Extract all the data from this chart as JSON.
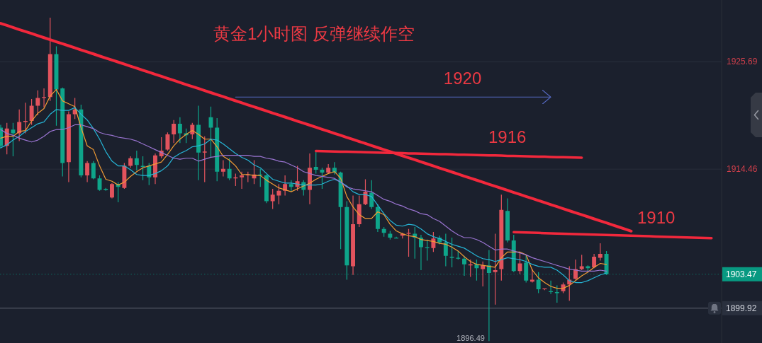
{
  "chart_data": {
    "type": "candlestick",
    "title": "黄金1小时图 反弹继续作空",
    "categories": [
      null,
      null,
      null,
      null,
      null,
      null,
      null,
      null,
      null,
      null,
      null,
      null,
      null,
      null,
      null,
      null,
      null,
      null,
      null,
      null,
      null,
      null,
      null,
      null,
      null,
      null,
      null,
      null,
      null,
      null,
      null,
      null,
      null,
      null,
      null,
      null,
      null,
      null,
      null,
      null,
      null,
      null,
      null,
      null,
      null,
      null,
      null,
      null,
      null,
      null,
      null,
      null,
      null,
      null,
      null,
      null,
      null,
      null,
      null,
      null,
      null,
      null,
      null,
      null,
      null,
      null,
      null,
      null,
      null,
      null,
      null,
      null,
      null,
      null,
      null,
      null,
      null,
      null,
      null,
      null,
      null,
      null,
      null,
      null,
      null,
      null,
      null,
      null,
      null,
      null,
      null,
      null,
      null,
      null,
      null,
      null,
      null,
      null,
      null,
      null,
      null,
      null,
      null,
      null,
      null,
      null,
      null,
      null,
      null,
      null,
      null,
      null,
      null,
      null,
      null,
      null,
      null
    ],
    "ohlc": [
      [
        1918.8,
        1919.1,
        1916.6,
        1916.9
      ],
      [
        1916.9,
        1919.3,
        1916.0,
        1918.7
      ],
      [
        1918.6,
        1919.3,
        1915.8,
        1918.2
      ],
      [
        1918.2,
        1920.7,
        1917.4,
        1919.4
      ],
      [
        1919.4,
        1921.4,
        1918.2,
        1919.5
      ],
      [
        1919.5,
        1921.8,
        1919.1,
        1921.1
      ],
      [
        1921.1,
        1922.7,
        1920.1,
        1921.9
      ],
      [
        1921.9,
        1922.9,
        1920.9,
        1922.0
      ],
      [
        1922.0,
        1930.3,
        1921.6,
        1926.5
      ],
      [
        1926.5,
        1927.3,
        1919.0,
        1922.8
      ],
      [
        1922.9,
        1923.0,
        1913.7,
        1915.1
      ],
      [
        1915.2,
        1920.5,
        1913.1,
        1920.2
      ],
      [
        1920.2,
        1921.9,
        1919.7,
        1920.7
      ],
      [
        1920.7,
        1921.2,
        1913.6,
        1913.8
      ],
      [
        1913.8,
        1915.3,
        1913.1,
        1915.1
      ],
      [
        1915.1,
        1915.3,
        1913.4,
        1913.5
      ],
      [
        1913.5,
        1913.8,
        1912.2,
        1912.3
      ],
      [
        1912.4,
        1912.5,
        1912.2,
        1912.3
      ],
      [
        1911.5,
        1913.0,
        1911.4,
        1912.9
      ],
      [
        1912.9,
        1913.1,
        1911.0,
        1912.6
      ],
      [
        1912.5,
        1915.1,
        1912.4,
        1914.8
      ],
      [
        1914.8,
        1915.8,
        1914.6,
        1915.6
      ],
      [
        1915.6,
        1916.4,
        1914.3,
        1914.9
      ],
      [
        1914.8,
        1915.8,
        1913.3,
        1914.7
      ],
      [
        1914.8,
        1915.1,
        1912.8,
        1913.6
      ],
      [
        1913.6,
        1916.1,
        1912.9,
        1915.9
      ],
      [
        1915.8,
        1917.8,
        1915.6,
        1916.4
      ],
      [
        1916.5,
        1918.3,
        1916.4,
        1918.1
      ],
      [
        1918.1,
        1919.6,
        1917.2,
        1919.2
      ],
      [
        1919.2,
        1919.9,
        1917.2,
        1918.2
      ],
      [
        1918.2,
        1918.7,
        1917.2,
        1918.0
      ],
      [
        1918.1,
        1919.3,
        1917.6,
        1919.1
      ],
      [
        1919.1,
        1921.1,
        1913.3,
        1916.2
      ],
      [
        1916.2,
        1917.9,
        1913.1,
        1916.3
      ],
      [
        1919.9,
        1921.0,
        1915.7,
        1918.8
      ],
      [
        1918.8,
        1919.8,
        1913.2,
        1914.2
      ],
      [
        1914.2,
        1915.4,
        1913.7,
        1914.5
      ],
      [
        1914.5,
        1915.6,
        1913.3,
        1913.5
      ],
      [
        1913.5,
        1914.0,
        1912.7,
        1913.6
      ],
      [
        1913.6,
        1914.2,
        1912.4,
        1913.8
      ],
      [
        1913.8,
        1914.2,
        1913.1,
        1913.9
      ],
      [
        1913.5,
        1915.4,
        1912.9,
        1913.9
      ],
      [
        1913.9,
        1914.5,
        1912.6,
        1913.8
      ],
      [
        1913.8,
        1913.9,
        1910.9,
        1911.1
      ],
      [
        1911.1,
        1912.4,
        1910.3,
        1911.8
      ],
      [
        1911.7,
        1912.9,
        1910.8,
        1912.2
      ],
      [
        1912.2,
        1913.8,
        1911.7,
        1912.9
      ],
      [
        1912.9,
        1913.3,
        1912.1,
        1912.6
      ],
      [
        1912.6,
        1914.8,
        1912.2,
        1913.2
      ],
      [
        1913.1,
        1913.3,
        1911.7,
        1912.3
      ],
      [
        1912.3,
        1916.1,
        1910.8,
        1914.6
      ],
      [
        1914.7,
        1916.4,
        1914.0,
        1914.4
      ],
      [
        1914.4,
        1914.6,
        1912.4,
        1914.1
      ],
      [
        1914.1,
        1915.0,
        1914.0,
        1914.6
      ],
      [
        1914.6,
        1915.2,
        1913.9,
        1914.1
      ],
      [
        1914.1,
        1914.2,
        1906.1,
        1910.5
      ],
      [
        1910.5,
        1911.1,
        1902.9,
        1904.4
      ],
      [
        1904.3,
        1911.7,
        1903.4,
        1908.7
      ],
      [
        1908.7,
        1911.7,
        1908.4,
        1910.8
      ],
      [
        1910.8,
        1913.4,
        1910.7,
        1912.1
      ],
      [
        1912.0,
        1913.3,
        1910.3,
        1910.5
      ],
      [
        1910.5,
        1910.8,
        1907.9,
        1908.2
      ],
      [
        1908.2,
        1908.4,
        1907.4,
        1907.8
      ],
      [
        1907.7,
        1908.0,
        1907.1,
        1907.3
      ],
      [
        1907.3,
        1907.4,
        1907.2,
        1907.2
      ],
      [
        1907.5,
        1907.8,
        1907.2,
        1907.7
      ],
      [
        1907.7,
        1908.2,
        1905.3,
        1907.8
      ],
      [
        1907.7,
        1908.4,
        1905.1,
        1907.3
      ],
      [
        1907.3,
        1907.6,
        1903.9,
        1906.3
      ],
      [
        1906.3,
        1907.1,
        1904.9,
        1906.2
      ],
      [
        1906.2,
        1907.9,
        1905.8,
        1907.2
      ],
      [
        1907.3,
        1907.5,
        1906.6,
        1906.8
      ],
      [
        1906.8,
        1907.7,
        1904.3,
        1905.4
      ],
      [
        1905.3,
        1907.3,
        1904.2,
        1905.2
      ],
      [
        1905.2,
        1905.9,
        1905.0,
        1905.1
      ],
      [
        1905.1,
        1905.4,
        1903.3,
        1904.5
      ],
      [
        1904.4,
        1905.0,
        1903.2,
        1904.5
      ],
      [
        1904.5,
        1905.0,
        1902.8,
        1904.1
      ],
      [
        1904.0,
        1904.8,
        1902.2,
        1904.4
      ],
      [
        1904.4,
        1906.0,
        1896.49,
        1903.6
      ],
      [
        1903.7,
        1907.7,
        1900.3,
        1903.9
      ],
      [
        1904.0,
        1911.8,
        1902.8,
        1910.2
      ],
      [
        1910.1,
        1911.4,
        1906.8,
        1907.0
      ],
      [
        1907.0,
        1907.6,
        1903.7,
        1903.8
      ],
      [
        1903.8,
        1905.8,
        1903.5,
        1904.6
      ],
      [
        1904.7,
        1905.5,
        1902.6,
        1902.8
      ],
      [
        1902.7,
        1904.0,
        1902.6,
        1902.9
      ],
      [
        1902.9,
        1903.7,
        1901.5,
        1901.9
      ],
      [
        1901.9,
        1902.0,
        1901.8,
        1902.0
      ],
      [
        1901.7,
        1902.8,
        1901.4,
        1901.6
      ],
      [
        1901.6,
        1902.3,
        1900.5,
        1901.5
      ],
      [
        1901.7,
        1902.6,
        1901.5,
        1902.4
      ],
      [
        1902.4,
        1904.3,
        1900.7,
        1902.9
      ],
      [
        1903.0,
        1905.0,
        1902.9,
        1904.0
      ],
      [
        1904.0,
        1905.5,
        1903.9,
        1904.3
      ],
      [
        1904.3,
        1904.4,
        1903.7,
        1904.1
      ],
      [
        1904.2,
        1905.6,
        1904.1,
        1905.3
      ],
      [
        1905.2,
        1906.7,
        1904.9,
        1905.6
      ],
      [
        1905.6,
        1905.9,
        1903.4,
        1903.47
      ],
      null,
      null,
      null,
      null,
      null,
      null,
      null,
      null,
      null,
      null,
      null,
      null,
      null,
      null,
      null,
      null,
      null,
      null
    ],
    "colors": [
      "#0ea58a",
      "#e2535d",
      "#0ea58a",
      "#e2535d",
      "#e2535d",
      "#e2535d",
      "#e2535d",
      "#e2535d",
      "#e2535d",
      "#0ea58a",
      "#0ea58a",
      "#e2535d",
      "#e2535d",
      "#0ea58a",
      "#e2535d",
      "#0ea58a",
      "#0ea58a",
      "#0ea58a",
      "#e2535d",
      "#0ea58a",
      "#e2535d",
      "#e2535d",
      "#0ea58a",
      "#0ea58a",
      "#0ea58a",
      "#e2535d",
      "#e2535d",
      "#e2535d",
      "#e2535d",
      "#0ea58a",
      "#0ea58a",
      "#e2535d",
      "#0ea58a",
      "#e2535d",
      "#0ea58a",
      "#0ea58a",
      "#e2535d",
      "#0ea58a",
      "#e2535d",
      "#e2535d",
      "#e2535d",
      "#e2535d",
      "#0ea58a",
      "#0ea58a",
      "#e2535d",
      "#e2535d",
      "#e2535d",
      "#0ea58a",
      "#e2535d",
      "#0ea58a",
      "#e2535d",
      "#0ea58a",
      "#0ea58a",
      "#e2535d",
      "#0ea58a",
      "#0ea58a",
      "#0ea58a",
      "#e2535d",
      "#e2535d",
      "#e2535d",
      "#0ea58a",
      "#0ea58a",
      "#0ea58a",
      "#0ea58a",
      "#0ea58a",
      "#e2535d",
      "#e2535d",
      "#0ea58a",
      "#0ea58a",
      "#0ea58a",
      "#e2535d",
      "#0ea58a",
      "#0ea58a",
      "#0ea58a",
      "#0ea58a",
      "#0ea58a",
      "#e2535d",
      "#0ea58a",
      "#e2535d",
      "#0ea58a",
      "#e2535d",
      "#e2535d",
      "#0ea58a",
      "#0ea58a",
      "#e2535d",
      "#0ea58a",
      "#e2535d",
      "#0ea58a",
      "#e2535d",
      "#0ea58a",
      "#0ea58a",
      "#e2535d",
      "#e2535d",
      "#e2535d",
      "#e2535d",
      "#0ea58a",
      "#e2535d",
      "#e2535d",
      "#0ea58a",
      null,
      null,
      null,
      null,
      null,
      null,
      null,
      null,
      null,
      null,
      null,
      null,
      null,
      null,
      null,
      null,
      null,
      null
    ],
    "series": [
      {
        "type": "line",
        "color": "#f39c34",
        "values": [
          1917.7,
          1917.9,
          1917.9,
          1918.4,
          1918.5,
          1919.5,
          1920.3,
          1920.8,
          1922.1,
          1922.8,
          1921.6,
          1921.3,
          1921.0,
          1918.8,
          1916.9,
          1916.5,
          1914.8,
          1913.4,
          1913.2,
          1912.8,
          1913.1,
          1913.7,
          1914.2,
          1914.6,
          1914.8,
          1915.0,
          1915.2,
          1916.0,
          1916.9,
          1917.6,
          1918.1,
          1918.5,
          1918.1,
          1917.6,
          1917.6,
          1916.8,
          1915.8,
          1915.4,
          1914.8,
          1913.9,
          1913.9,
          1913.8,
          1913.8,
          1913.3,
          1912.9,
          1912.5,
          1912.3,
          1912.1,
          1912.4,
          1912.7,
          1913.0,
          1913.4,
          1913.7,
          1914.0,
          1914.2,
          1913.5,
          1911.6,
          1910.5,
          1909.7,
          1909.3,
          1909.3,
          1910.0,
          1909.7,
          1908.7,
          1908.0,
          1907.7,
          1907.5,
          1907.4,
          1907.1,
          1907.0,
          1906.9,
          1906.7,
          1906.6,
          1906.3,
          1905.9,
          1905.3,
          1904.8,
          1904.5,
          1904.4,
          1904.3,
          1904.2,
          1905.2,
          1905.8,
          1905.8,
          1905.8,
          1905.5,
          1903.9,
          1903.1,
          1902.6,
          1902.2,
          1902.0,
          1902.0,
          1902.3,
          1902.8,
          1903.3,
          1903.7,
          1904.2,
          1904.6,
          1904.5,
          null,
          null,
          null,
          null,
          null,
          null,
          null,
          null,
          null,
          null,
          null,
          null,
          null,
          null,
          null,
          null,
          null,
          null
        ]
      },
      {
        "type": "line",
        "color": "#26b5d6",
        "values": [
          1916.7,
          1917.0,
          1917.5,
          1917.9,
          1918.4,
          1918.8,
          1919.2,
          1919.4,
          1920.2,
          1920.7,
          1920.6,
          1920.6,
          1920.9,
          1920.2,
          1919.6,
          1918.7,
          1917.6,
          1916.3,
          1915.3,
          1914.8,
          1914.8,
          1914.4,
          1913.9,
          1913.8,
          1913.8,
          1914.0,
          1914.3,
          1914.8,
          1915.7,
          1916.1,
          1916.4,
          1916.8,
          1916.9,
          1917.1,
          1917.6,
          1917.5,
          1917.1,
          1916.6,
          1916.1,
          1915.7,
          1915.4,
          1914.9,
          1914.6,
          1914.0,
          1913.4,
          1913.2,
          1913.0,
          1913.0,
          1912.9,
          1912.8,
          1912.8,
          1912.8,
          1912.9,
          1913.2,
          1913.4,
          1913.1,
          1912.7,
          1912.1,
          1911.8,
          1911.8,
          1911.6,
          1910.7,
          1909.8,
          1909.1,
          1908.6,
          1908.5,
          1908.7,
          1908.6,
          1908.2,
          1907.7,
          1907.4,
          1907.2,
          1906.9,
          1906.6,
          1906.4,
          1906.2,
          1905.8,
          1905.4,
          1905.1,
          1905.0,
          1904.8,
          1905.0,
          1905.2,
          1905.1,
          1905.0,
          1904.8,
          1904.5,
          1904.3,
          1904.2,
          1904.2,
          1903.9,
          1903.4,
          1902.8,
          1902.6,
          1902.6,
          1902.8,
          1903.1,
          1903.4,
          1903.6,
          null,
          null,
          null,
          null,
          null,
          null,
          null,
          null,
          null,
          null,
          null,
          null,
          null,
          null,
          null,
          null,
          null,
          null
        ]
      },
      {
        "type": "line",
        "color": "#9a74d1",
        "values": [
          1918.6,
          1918.2,
          1918.0,
          1917.7,
          1917.5,
          1917.3,
          1917.5,
          1917.9,
          1918.4,
          1918.6,
          1918.6,
          1918.8,
          1919.1,
          1919.1,
          1918.9,
          1918.7,
          1918.3,
          1918.1,
          1918.0,
          1917.8,
          1917.7,
          1917.6,
          1917.4,
          1917.1,
          1916.8,
          1916.5,
          1916.2,
          1915.9,
          1915.6,
          1915.5,
          1915.6,
          1915.6,
          1915.3,
          1915.5,
          1915.7,
          1915.8,
          1915.9,
          1915.9,
          1915.9,
          1915.9,
          1915.9,
          1915.8,
          1915.8,
          1915.6,
          1915.5,
          1915.3,
          1915.2,
          1914.9,
          1914.6,
          1914.2,
          1914.0,
          1913.8,
          1913.7,
          1913.6,
          1913.5,
          1913.1,
          1912.6,
          1912.4,
          1912.3,
          1912.2,
          1912.1,
          1911.7,
          1911.3,
          1911.1,
          1910.8,
          1910.6,
          1910.3,
          1910.1,
          1909.8,
          1909.7,
          1909.3,
          1909.0,
          1908.5,
          1908.0,
          1907.6,
          1907.3,
          1907.3,
          1907.1,
          1906.8,
          1906.4,
          1906.0,
          1906.1,
          1906.1,
          1905.9,
          1905.7,
          1905.5,
          1905.2,
          1905.0,
          1904.8,
          1904.6,
          1904.4,
          1904.2,
          1904.0,
          1903.9,
          1903.8,
          1903.8,
          1903.8,
          1903.9,
          1903.8,
          null,
          null,
          null,
          null,
          null,
          null,
          null,
          null,
          null,
          null,
          null,
          null,
          null,
          null,
          null,
          null,
          null,
          null
        ]
      },
      {
        "type": "line",
        "color": "#f2283c",
        "values": [
          1929.7,
          1929.49,
          1929.27,
          1929.06,
          1928.85,
          1928.64,
          1928.42,
          1928.21,
          1928.0,
          1927.78,
          1927.57,
          1927.36,
          1927.15,
          1926.93,
          1926.72,
          1926.51,
          1926.29,
          1926.08,
          1925.87,
          1925.66,
          1925.44,
          1925.23,
          1925.02,
          1924.8,
          1924.59,
          1924.38,
          1924.17,
          1923.95,
          1923.74,
          1923.53,
          1923.31,
          1923.1,
          1922.89,
          1922.67,
          1922.46,
          1922.25,
          1922.04,
          1921.82,
          1921.61,
          1921.4,
          1921.18,
          1920.97,
          1920.76,
          1920.55,
          1920.33,
          1920.12,
          1919.91,
          1919.69,
          1919.48,
          1919.27,
          1919.06,
          1918.84,
          1918.63,
          1918.42,
          1918.2,
          1917.99,
          1917.78,
          1917.57,
          1917.35,
          1917.14,
          1916.93,
          1916.71,
          1916.5,
          1916.29,
          1916.07,
          1915.86,
          1915.65,
          1915.44,
          1915.22,
          1915.01,
          1914.8,
          1914.58,
          1914.37,
          1914.16,
          1913.95,
          1913.73,
          1913.52,
          1913.31,
          1913.09,
          1912.88,
          1912.67,
          1912.46,
          1912.24,
          1912.03,
          1911.82,
          1911.6,
          1911.39,
          1911.18,
          1910.97,
          1910.75,
          1910.54,
          1910.33,
          1910.11,
          1909.9,
          1909.69,
          1909.48,
          1909.26,
          1909.05,
          1908.84,
          1908.62,
          1908.41,
          1908.2,
          1907.98,
          null,
          null,
          null,
          null,
          null,
          null,
          null,
          null,
          null,
          null,
          null,
          null,
          null,
          null
        ]
      },
      {
        "type": "line",
        "name": "1920",
        "color": "#5568c0",
        "values": [
          null,
          null,
          null,
          null,
          null,
          null,
          null,
          null,
          null,
          null,
          null,
          null,
          null,
          null,
          null,
          null,
          null,
          null,
          null,
          null,
          null,
          null,
          null,
          null,
          null,
          null,
          null,
          null,
          null,
          null,
          null,
          null,
          null,
          null,
          null,
          null,
          null,
          null,
          1922.0,
          1922.0,
          1922.0,
          1922.0,
          1922.0,
          1922.0,
          1922.0,
          1922.0,
          1922.0,
          1922.0,
          1922.0,
          1922.0,
          1922.0,
          1922.0,
          1922.0,
          1922.0,
          1922.0,
          1922.0,
          1922.0,
          1922.0,
          1922.0,
          1922.0,
          1922.0,
          1922.0,
          1922.0,
          1922.0,
          1922.0,
          1922.0,
          1922.0,
          1922.0,
          1922.0,
          1922.0,
          1922.0,
          1922.0,
          1922.0,
          1922.0,
          1922.0,
          1922.0,
          1922.0,
          1922.0,
          1922.0,
          1922.0,
          1922.0,
          1922.0,
          1922.0,
          1922.0,
          1922.0,
          1922.0,
          1922.0,
          1922.0,
          1922.0,
          1922.0,
          null,
          null,
          null,
          null,
          null,
          null,
          null,
          null,
          null,
          null,
          null,
          null,
          null,
          null,
          null,
          null,
          null,
          null,
          null,
          null,
          null,
          null,
          null,
          null,
          null,
          null,
          null
        ]
      },
      {
        "type": "line",
        "name": "1916",
        "color": "#f2283c",
        "values": [
          null,
          null,
          null,
          null,
          null,
          null,
          null,
          null,
          null,
          null,
          null,
          null,
          null,
          null,
          null,
          null,
          null,
          null,
          null,
          null,
          null,
          null,
          null,
          null,
          null,
          null,
          null,
          null,
          null,
          null,
          null,
          null,
          null,
          null,
          null,
          null,
          null,
          null,
          null,
          null,
          null,
          null,
          null,
          null,
          null,
          null,
          null,
          null,
          null,
          null,
          null,
          1916.36,
          1916.34,
          1916.33,
          1916.31,
          1916.29,
          1916.28,
          1916.26,
          1916.25,
          1916.23,
          1916.21,
          1916.2,
          1916.18,
          1916.16,
          1916.15,
          1916.13,
          1916.11,
          1916.1,
          1916.08,
          1916.07,
          1916.05,
          1916.03,
          1916.02,
          1916.0,
          1915.98,
          1915.97,
          1915.95,
          1915.94,
          1915.92,
          1915.9,
          1915.89,
          1915.87,
          1915.85,
          1915.84,
          1915.82,
          1915.8,
          1915.79,
          1915.77,
          1915.76,
          1915.74,
          1915.72,
          1915.71,
          1915.69,
          1915.67,
          1915.66,
          null,
          null,
          null,
          null,
          null,
          null,
          null,
          null,
          null,
          null,
          null,
          null,
          null,
          null,
          null,
          null,
          null,
          null,
          null,
          null,
          null,
          null
        ]
      },
      {
        "type": "line",
        "name": "1910",
        "color": "#f2283c",
        "values": [
          null,
          null,
          null,
          null,
          null,
          null,
          null,
          null,
          null,
          null,
          null,
          null,
          null,
          null,
          null,
          null,
          null,
          null,
          null,
          null,
          null,
          null,
          null,
          null,
          null,
          null,
          null,
          null,
          null,
          null,
          null,
          null,
          null,
          null,
          null,
          null,
          null,
          null,
          null,
          null,
          null,
          null,
          null,
          null,
          null,
          null,
          null,
          null,
          null,
          null,
          null,
          null,
          null,
          null,
          null,
          null,
          null,
          null,
          null,
          null,
          null,
          null,
          null,
          null,
          null,
          null,
          null,
          null,
          null,
          null,
          null,
          null,
          null,
          null,
          null,
          null,
          null,
          null,
          null,
          null,
          null,
          null,
          null,
          1907.87,
          1907.85,
          1907.83,
          1907.81,
          1907.79,
          1907.77,
          1907.75,
          1907.73,
          1907.71,
          1907.69,
          1907.67,
          1907.65,
          1907.63,
          1907.62,
          1907.6,
          1907.58,
          1907.56,
          1907.54,
          1907.52,
          1907.5,
          1907.48,
          1907.46,
          1907.44,
          1907.42,
          1907.4,
          1907.38,
          1907.36,
          1907.34,
          1907.32,
          1907.3,
          1907.28,
          1907.26,
          1907.24,
          null
        ]
      }
    ],
    "ylim": [
      1896.28,
      1932.15
    ],
    "yticks": [
      1925.69,
      1914.46
    ],
    "grid": "y",
    "tick_labels": "y",
    "ref_lines": [
      {
        "axis": "y",
        "value": 1903.47,
        "label": "1903.47",
        "color": "#089981",
        "line_style": "dotted"
      },
      {
        "axis": "y",
        "value": 1899.92,
        "label": "1899.92",
        "color": "#5f6371"
      }
    ],
    "annotations": [
      "1896.49"
    ]
  }
}
